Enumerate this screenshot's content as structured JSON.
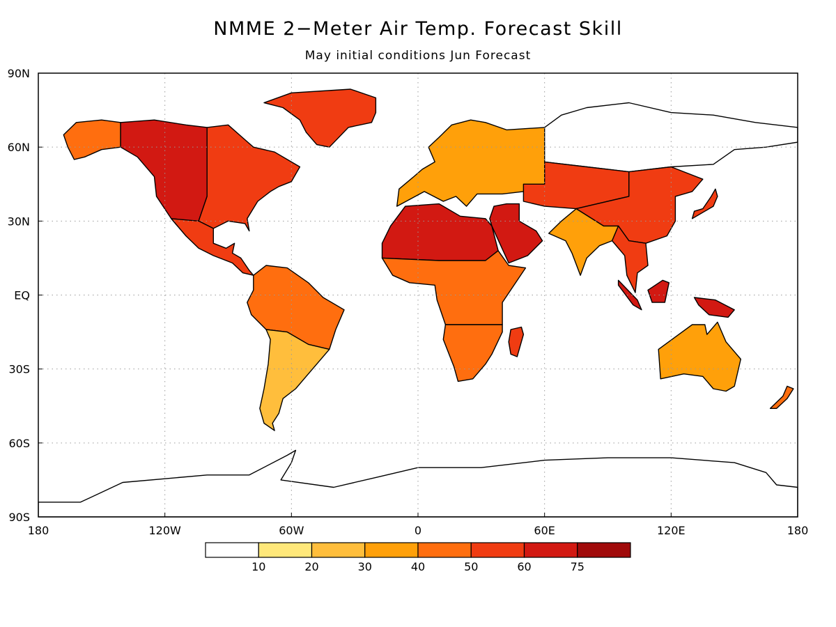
{
  "header": {
    "title": "NMME 2−Meter Air Temp. Forecast Skill",
    "subtitle": "May initial conditions  Jun Forecast"
  },
  "map": {
    "projection": "cylindrical equidistant",
    "lon_range": [
      -180,
      180
    ],
    "lat_range": [
      -90,
      90
    ],
    "grid": "dotted",
    "lat_ticks": [
      {
        "value": 90,
        "label": "90N"
      },
      {
        "value": 60,
        "label": "60N"
      },
      {
        "value": 30,
        "label": "30N"
      },
      {
        "value": 0,
        "label": "EQ"
      },
      {
        "value": -30,
        "label": "30S"
      },
      {
        "value": -60,
        "label": "60S"
      },
      {
        "value": -90,
        "label": "90S"
      }
    ],
    "lon_ticks": [
      {
        "value": -180,
        "label": "180"
      },
      {
        "value": -120,
        "label": "120W"
      },
      {
        "value": -60,
        "label": "60W"
      },
      {
        "value": 0,
        "label": "0"
      },
      {
        "value": 60,
        "label": "60E"
      },
      {
        "value": 120,
        "label": "120E"
      },
      {
        "value": 180,
        "label": "180"
      }
    ],
    "regions": [
      {
        "name": "Greenland",
        "level": 5
      },
      {
        "name": "Western North America",
        "level": 6
      },
      {
        "name": "Eastern North America",
        "level": 5
      },
      {
        "name": "Alaska",
        "level": 4
      },
      {
        "name": "Central America",
        "level": 5
      },
      {
        "name": "Amazon Basin",
        "level": 4
      },
      {
        "name": "Southern South America",
        "level": 2
      },
      {
        "name": "Sahara",
        "level": 6
      },
      {
        "name": "Central Africa",
        "level": 4
      },
      {
        "name": "Southern Africa",
        "level": 4
      },
      {
        "name": "Arabian Peninsula",
        "level": 6
      },
      {
        "name": "Europe",
        "level": 3
      },
      {
        "name": "Siberia",
        "level": 0
      },
      {
        "name": "Central Asia",
        "level": 5
      },
      {
        "name": "China",
        "level": 5
      },
      {
        "name": "India",
        "level": 3
      },
      {
        "name": "Southeast Asia",
        "level": 5
      },
      {
        "name": "Maritime Continent",
        "level": 6
      },
      {
        "name": "Australia",
        "level": 3
      },
      {
        "name": "Antarctica",
        "level": 0
      }
    ]
  },
  "colorbar": {
    "colors": [
      "#ffffff",
      "#ffe87a",
      "#ffbe3c",
      "#ffa00a",
      "#ff6e0f",
      "#f03c12",
      "#d21912",
      "#a00a0a"
    ],
    "tick_labels": [
      "10",
      "20",
      "30",
      "40",
      "50",
      "60",
      "75"
    ]
  }
}
